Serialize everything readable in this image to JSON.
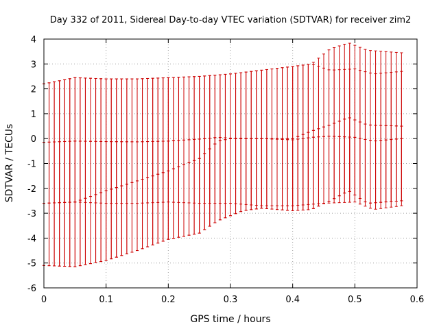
{
  "chart_data": {
    "type": "line",
    "title": "Day 332 of 2011, Sidereal Day-to-day VTEC variation (SDTVAR) for receiver zim2",
    "xlabel": "GPS time / hours",
    "ylabel": "SDTVAR / TECUs",
    "xlim": [
      0,
      0.6
    ],
    "ylim": [
      -6,
      4
    ],
    "xticks": [
      "0",
      "0.1",
      "0.2",
      "0.3",
      "0.4",
      "0.5",
      "0.6"
    ],
    "yticks": [
      "-6",
      "-5",
      "-4",
      "-3",
      "-2",
      "-1",
      "0",
      "1",
      "2",
      "3",
      "4"
    ],
    "grid": true,
    "grid_style": "dotted",
    "color": "#cc0000",
    "x_range": [
      0,
      0.575
    ],
    "n_points": 70,
    "series": [
      {
        "upper_anchors": [
          [
            0,
            2.2
          ],
          [
            0.05,
            2.45
          ],
          [
            0.1,
            2.4
          ],
          [
            0.15,
            2.4
          ],
          [
            0.2,
            2.45
          ],
          [
            0.25,
            2.5
          ],
          [
            0.3,
            2.6
          ],
          [
            0.35,
            2.75
          ],
          [
            0.4,
            2.9
          ],
          [
            0.43,
            3.0
          ],
          [
            0.46,
            3.6
          ],
          [
            0.49,
            3.85
          ],
          [
            0.52,
            3.55
          ],
          [
            0.575,
            3.45
          ]
        ],
        "center_anchors": [
          [
            0,
            -0.15
          ],
          [
            0.05,
            -0.1
          ],
          [
            0.1,
            -0.12
          ],
          [
            0.15,
            -0.13
          ],
          [
            0.2,
            -0.1
          ],
          [
            0.25,
            -0.02
          ],
          [
            0.28,
            0.05
          ],
          [
            0.3,
            0.02
          ],
          [
            0.35,
            0.0
          ],
          [
            0.4,
            -0.05
          ],
          [
            0.43,
            0.05
          ],
          [
            0.46,
            0.1
          ],
          [
            0.5,
            0.05
          ],
          [
            0.53,
            -0.1
          ],
          [
            0.575,
            0.0
          ]
        ],
        "lower_anchors": [
          [
            0,
            -5.1
          ],
          [
            0.05,
            -5.15
          ],
          [
            0.1,
            -4.9
          ],
          [
            0.15,
            -4.5
          ],
          [
            0.2,
            -4.05
          ],
          [
            0.25,
            -3.8
          ],
          [
            0.28,
            -3.3
          ],
          [
            0.32,
            -2.9
          ],
          [
            0.35,
            -2.8
          ],
          [
            0.4,
            -2.9
          ],
          [
            0.43,
            -2.85
          ],
          [
            0.46,
            -2.5
          ],
          [
            0.49,
            -2.1
          ],
          [
            0.52,
            -2.6
          ],
          [
            0.575,
            -2.5
          ]
        ]
      },
      {
        "upper_anchors": [
          [
            0,
            -0.15
          ],
          [
            0.05,
            -0.1
          ],
          [
            0.1,
            -0.12
          ],
          [
            0.15,
            -0.13
          ],
          [
            0.2,
            -0.1
          ],
          [
            0.25,
            -0.02
          ],
          [
            0.28,
            0.05
          ],
          [
            0.3,
            0.02
          ],
          [
            0.35,
            0.0
          ],
          [
            0.4,
            -0.05
          ],
          [
            0.43,
            0.05
          ],
          [
            0.46,
            0.1
          ],
          [
            0.5,
            0.05
          ],
          [
            0.53,
            -0.1
          ],
          [
            0.575,
            0.0
          ]
        ],
        "center_anchors": [
          [
            0,
            -2.6
          ],
          [
            0.05,
            -2.55
          ],
          [
            0.1,
            -2.1
          ],
          [
            0.15,
            -1.7
          ],
          [
            0.2,
            -1.3
          ],
          [
            0.25,
            -0.8
          ],
          [
            0.28,
            -0.1
          ],
          [
            0.3,
            0.0
          ],
          [
            0.35,
            0.0
          ],
          [
            0.4,
            0.0
          ],
          [
            0.43,
            0.3
          ],
          [
            0.46,
            0.55
          ],
          [
            0.49,
            0.85
          ],
          [
            0.52,
            0.55
          ],
          [
            0.575,
            0.5
          ]
        ],
        "lower_anchors": [
          [
            0,
            -2.6
          ],
          [
            0.05,
            -2.55
          ],
          [
            0.1,
            -2.6
          ],
          [
            0.15,
            -2.6
          ],
          [
            0.2,
            -2.55
          ],
          [
            0.25,
            -2.6
          ],
          [
            0.3,
            -2.6
          ],
          [
            0.35,
            -2.7
          ],
          [
            0.4,
            -2.7
          ],
          [
            0.45,
            -2.6
          ],
          [
            0.5,
            -2.55
          ],
          [
            0.53,
            -2.85
          ],
          [
            0.575,
            -2.7
          ]
        ]
      },
      {
        "upper_anchors": [
          [
            0,
            2.2
          ],
          [
            0.05,
            2.45
          ],
          [
            0.1,
            2.4
          ],
          [
            0.15,
            2.4
          ],
          [
            0.2,
            2.45
          ],
          [
            0.25,
            2.5
          ],
          [
            0.3,
            2.6
          ],
          [
            0.35,
            2.75
          ],
          [
            0.4,
            2.9
          ],
          [
            0.43,
            3.0
          ],
          [
            0.46,
            2.75
          ],
          [
            0.5,
            2.8
          ],
          [
            0.53,
            2.6
          ],
          [
            0.575,
            2.7
          ]
        ],
        "center_anchors": [
          [
            0,
            -2.6
          ],
          [
            0.05,
            -2.55
          ],
          [
            0.1,
            -2.1
          ],
          [
            0.15,
            -1.7
          ],
          [
            0.2,
            -1.3
          ],
          [
            0.25,
            -0.8
          ],
          [
            0.28,
            -0.1
          ],
          [
            0.3,
            0.0
          ],
          [
            0.35,
            0.0
          ],
          [
            0.4,
            0.0
          ],
          [
            0.43,
            0.3
          ],
          [
            0.46,
            0.55
          ],
          [
            0.49,
            0.85
          ],
          [
            0.52,
            0.55
          ],
          [
            0.575,
            0.5
          ]
        ],
        "lower_anchors": [
          [
            0,
            -5.1
          ],
          [
            0.05,
            -5.15
          ],
          [
            0.1,
            -4.9
          ],
          [
            0.15,
            -4.5
          ],
          [
            0.2,
            -4.05
          ],
          [
            0.25,
            -3.8
          ],
          [
            0.28,
            -3.3
          ],
          [
            0.32,
            -2.9
          ],
          [
            0.35,
            -2.8
          ],
          [
            0.4,
            -2.9
          ],
          [
            0.43,
            -2.85
          ],
          [
            0.46,
            -2.5
          ],
          [
            0.49,
            -2.1
          ],
          [
            0.52,
            -2.6
          ],
          [
            0.575,
            -2.5
          ]
        ]
      }
    ]
  }
}
